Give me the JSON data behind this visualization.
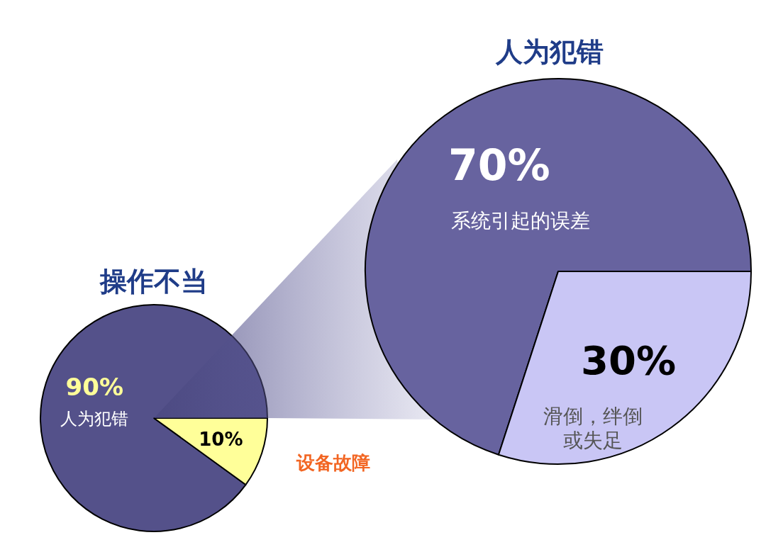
{
  "chart_data": [
    {
      "type": "pie",
      "title": "操作不当",
      "categories": [
        "人为犯错",
        "设备故障"
      ],
      "values": [
        90,
        10
      ],
      "colors": [
        "#54518a",
        "#ffff99"
      ],
      "value_labels": [
        "90%",
        "10%"
      ]
    },
    {
      "type": "pie",
      "title": "人为犯错",
      "categories": [
        "系统引起的误差",
        "滑倒，绊倒或失足"
      ],
      "values": [
        70,
        30
      ],
      "colors": [
        "#67639f",
        "#c9c6f5"
      ],
      "value_labels": [
        "70%",
        "30%"
      ]
    }
  ]
}
